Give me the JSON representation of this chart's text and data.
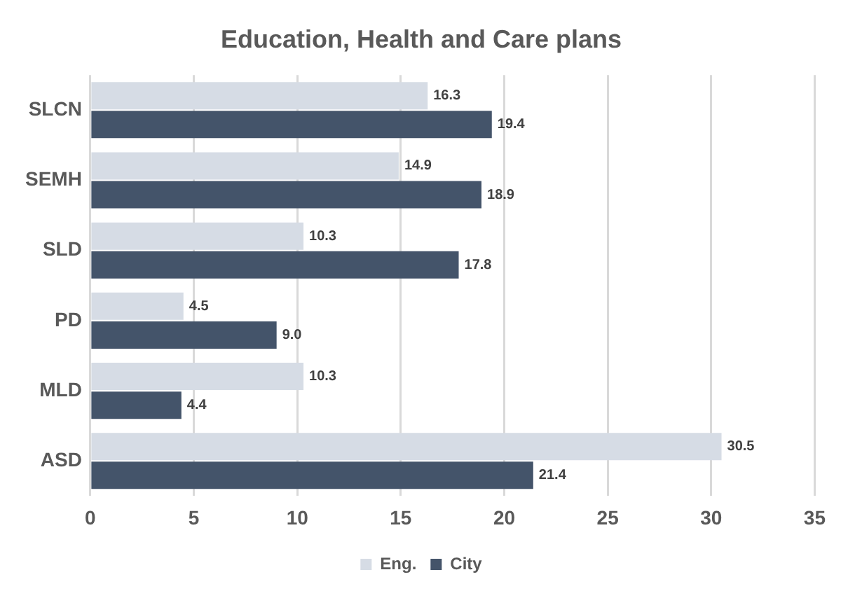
{
  "chart_data": {
    "type": "bar",
    "orientation": "horizontal",
    "title": "Education, Health and Care plans",
    "categories": [
      "SLCN",
      "SEMH",
      "SLD",
      "PD",
      "MLD",
      "ASD"
    ],
    "series": [
      {
        "name": "Eng.",
        "color": "#d6dce5",
        "values": [
          16.3,
          14.9,
          10.3,
          4.5,
          10.3,
          30.5
        ],
        "value_labels": [
          "16.3",
          "14.9",
          "10.3",
          "4.5",
          "10.3",
          "30.5"
        ]
      },
      {
        "name": "City",
        "color": "#44546a",
        "values": [
          19.4,
          18.9,
          17.8,
          9.0,
          4.4,
          21.4
        ],
        "value_labels": [
          "19.4",
          "18.9",
          "17.8",
          "9.0",
          "4.4",
          "21.4"
        ]
      }
    ],
    "xlim": [
      0,
      35
    ],
    "xticks": [
      0,
      5,
      10,
      15,
      20,
      25,
      30,
      35
    ],
    "grid": "x",
    "legend": "bottom"
  }
}
